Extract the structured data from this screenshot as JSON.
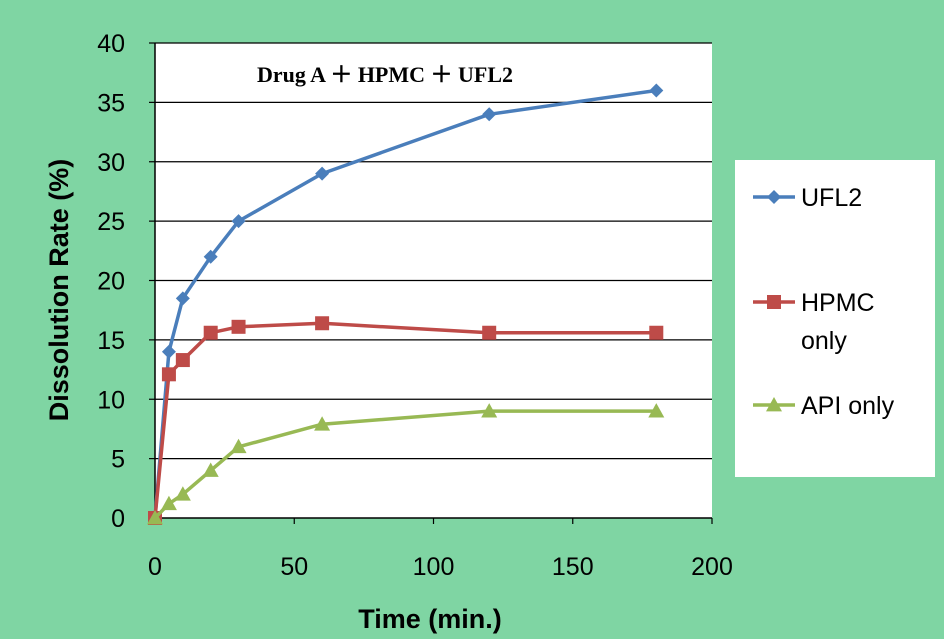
{
  "chart_data": {
    "type": "line",
    "title": "Drug A ＋ HPMC ＋ UFL2",
    "xlabel": "Time (min.)",
    "ylabel": "Dissolution Rate (%)",
    "xlim": [
      0,
      200
    ],
    "ylim": [
      0,
      40
    ],
    "xticks": [
      "0",
      "50",
      "100",
      "150",
      "200"
    ],
    "yticks": [
      "0",
      "5",
      "10",
      "15",
      "20",
      "25",
      "30",
      "35",
      "40"
    ],
    "grid": "horizontal",
    "legend_position": "right",
    "background_color": "#7fd5a3",
    "series": [
      {
        "name": "UFL2",
        "marker": "diamond",
        "color": "#4a7ebb",
        "x": [
          0,
          5,
          10,
          20,
          30,
          60,
          120,
          180
        ],
        "y": [
          0,
          14,
          18.5,
          22,
          25,
          29,
          34,
          36
        ]
      },
      {
        "name": "HPMC only",
        "legend_lines": [
          "HPMC",
          "only"
        ],
        "marker": "square",
        "color": "#be4b48",
        "x": [
          0,
          5,
          10,
          20,
          30,
          60,
          120,
          180
        ],
        "y": [
          0,
          12.1,
          13.3,
          15.6,
          16.1,
          16.4,
          15.6,
          15.6
        ]
      },
      {
        "name": "API only",
        "marker": "triangle",
        "color": "#98b954",
        "x": [
          0,
          5,
          10,
          20,
          30,
          60,
          120,
          180
        ],
        "y": [
          0,
          1.2,
          2,
          4,
          6,
          7.9,
          9,
          9
        ]
      }
    ]
  }
}
